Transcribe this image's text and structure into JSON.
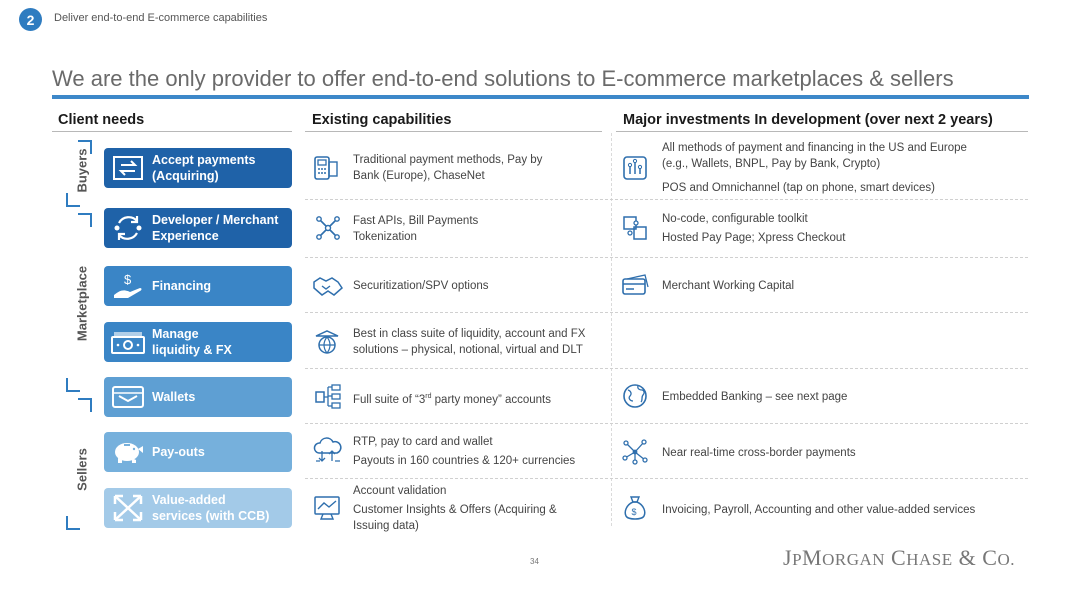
{
  "header": {
    "section_number": "2",
    "section_title": "Deliver end-to-end E-commerce capabilities",
    "main_title": "We are the only provider to offer end-to-end solutions to E-commerce marketplaces & sellers"
  },
  "columns": {
    "client_needs": "Client needs",
    "existing": "Existing capabilities",
    "investments": "Major investments In development (over next 2 years)"
  },
  "side_labels": {
    "buyers": "Buyers",
    "marketplace": "Marketplace",
    "sellers": "Sellers"
  },
  "rows": [
    {
      "need_line1": "Accept payments",
      "need_line2": "(Acquiring)",
      "need_color": "#1f62a8",
      "existing_line1": "Traditional payment methods, Pay by",
      "existing_line2": "Bank (Europe), ChaseNet",
      "invest_line1": "All methods of payment and financing in the US and Europe",
      "invest_line2": "(e.g., Wallets, BNPL, Pay by Bank, Crypto)",
      "invest_line3": "POS and Omnichannel (tap on phone, smart devices)"
    },
    {
      "need_line1": "Developer / Merchant",
      "need_line2": "Experience",
      "need_color": "#1f62a8",
      "existing_line1": "Fast APIs, Bill Payments",
      "existing_line2": "Tokenization",
      "invest_line1": "No-code, configurable toolkit",
      "invest_line2": "Hosted Pay Page; Xpress Checkout"
    },
    {
      "need_line1": "Financing",
      "need_color": "#3a85c6",
      "existing_line1": "Securitization/SPV options",
      "invest_line1": "Merchant Working Capital"
    },
    {
      "need_line1": "Manage",
      "need_line2": "liquidity & FX",
      "need_color": "#3a85c6",
      "existing_line1": "Best in class suite of liquidity, account and FX",
      "existing_line2": "solutions – physical, notional, virtual and DLT"
    },
    {
      "need_line1": "Wallets",
      "need_color": "#5e9fd3",
      "existing_prefix": "Full suite of “3",
      "existing_sup": "rd",
      "existing_suffix": " party money” accounts",
      "invest_line1": "Embedded Banking – see next page"
    },
    {
      "need_line1": "Pay-outs",
      "need_color": "#76b0dc",
      "existing_line1": "RTP, pay to card and wallet",
      "existing_line2": "Payouts in 160 countries & 120+ currencies",
      "invest_line1": "Near real-time cross-border payments"
    },
    {
      "need_line1": "Value-added",
      "need_line2": "services  (with CCB)",
      "need_color": "#a3cae8",
      "existing_line1": "Account validation",
      "existing_line2": "Customer Insights & Offers (Acquiring &",
      "existing_line3": "Issuing data)",
      "invest_line1": "Invoicing, Payroll, Accounting and other value-added services"
    }
  ],
  "footer": {
    "page_number": "34",
    "logo_text": "JPMORGAN CHASE & CO."
  },
  "colors": {
    "accent": "#2f7cc0",
    "icon": "#2f6fad"
  }
}
